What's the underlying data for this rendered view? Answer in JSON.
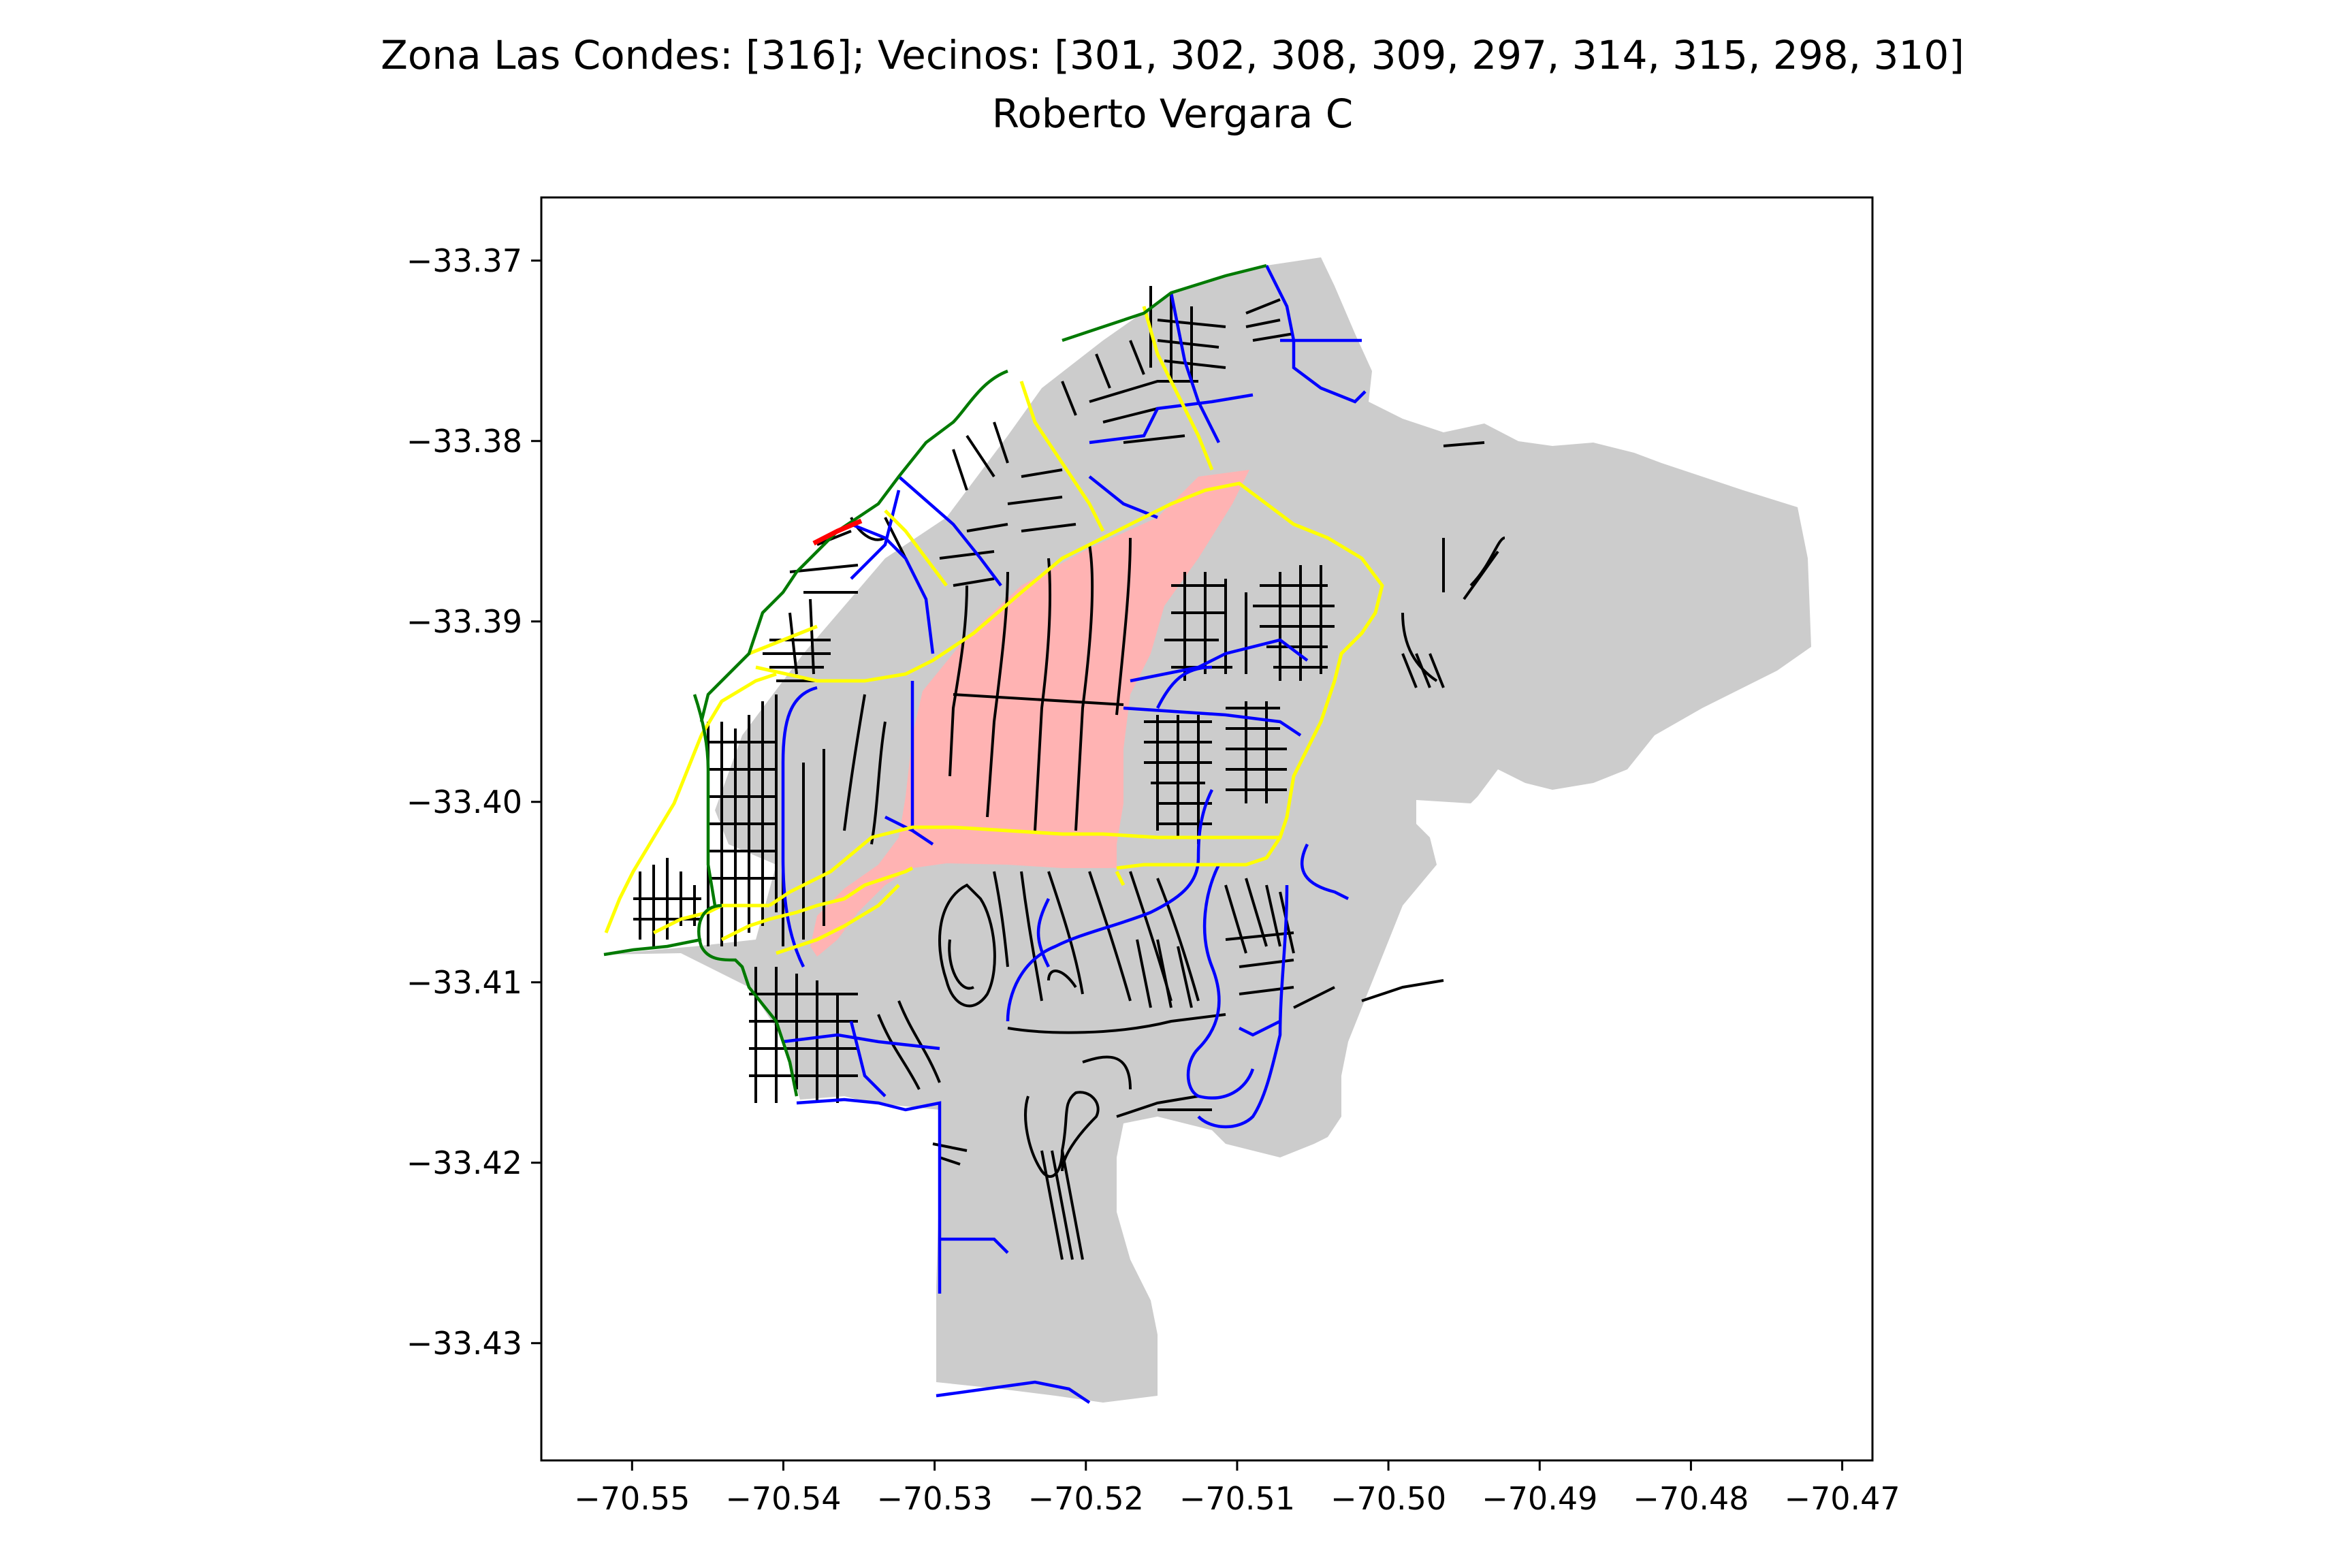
{
  "title": {
    "line1": "Zona Las Condes: [316]; Vecinos: [301, 302, 308, 309, 297, 314, 315, 298, 310]",
    "line2": "Roberto Vergara C"
  },
  "colors": {
    "background_zone": "#cccccc",
    "selected_zone": "#ffb3b3",
    "street_black": "#000000",
    "street_blue": "#0000ff",
    "street_yellow": "#ffff00",
    "street_green": "#007a00",
    "street_red": "#ff0000"
  },
  "axes": {
    "x_ticks": [
      "−70.55",
      "−70.54",
      "−70.53",
      "−70.52",
      "−70.51",
      "−70.50",
      "−70.49",
      "−70.48",
      "−70.47"
    ],
    "y_ticks": [
      "−33.37",
      "−33.38",
      "−33.39",
      "−33.40",
      "−33.41",
      "−33.42",
      "−33.43"
    ]
  },
  "chart_data": {
    "type": "map",
    "xlim": [
      -70.556,
      -70.468
    ],
    "ylim": [
      -33.4365,
      -33.3665
    ],
    "x_ticks": [
      -70.55,
      -70.54,
      -70.53,
      -70.52,
      -70.51,
      -70.5,
      -70.49,
      -70.48,
      -70.47
    ],
    "y_ticks": [
      -33.37,
      -33.38,
      -33.39,
      -33.4,
      -33.41,
      -33.42,
      -33.43
    ],
    "zones": {
      "focus": [
        316
      ],
      "neighbors": [
        301,
        302,
        308,
        309,
        297,
        314,
        315,
        298,
        310
      ]
    }
  }
}
